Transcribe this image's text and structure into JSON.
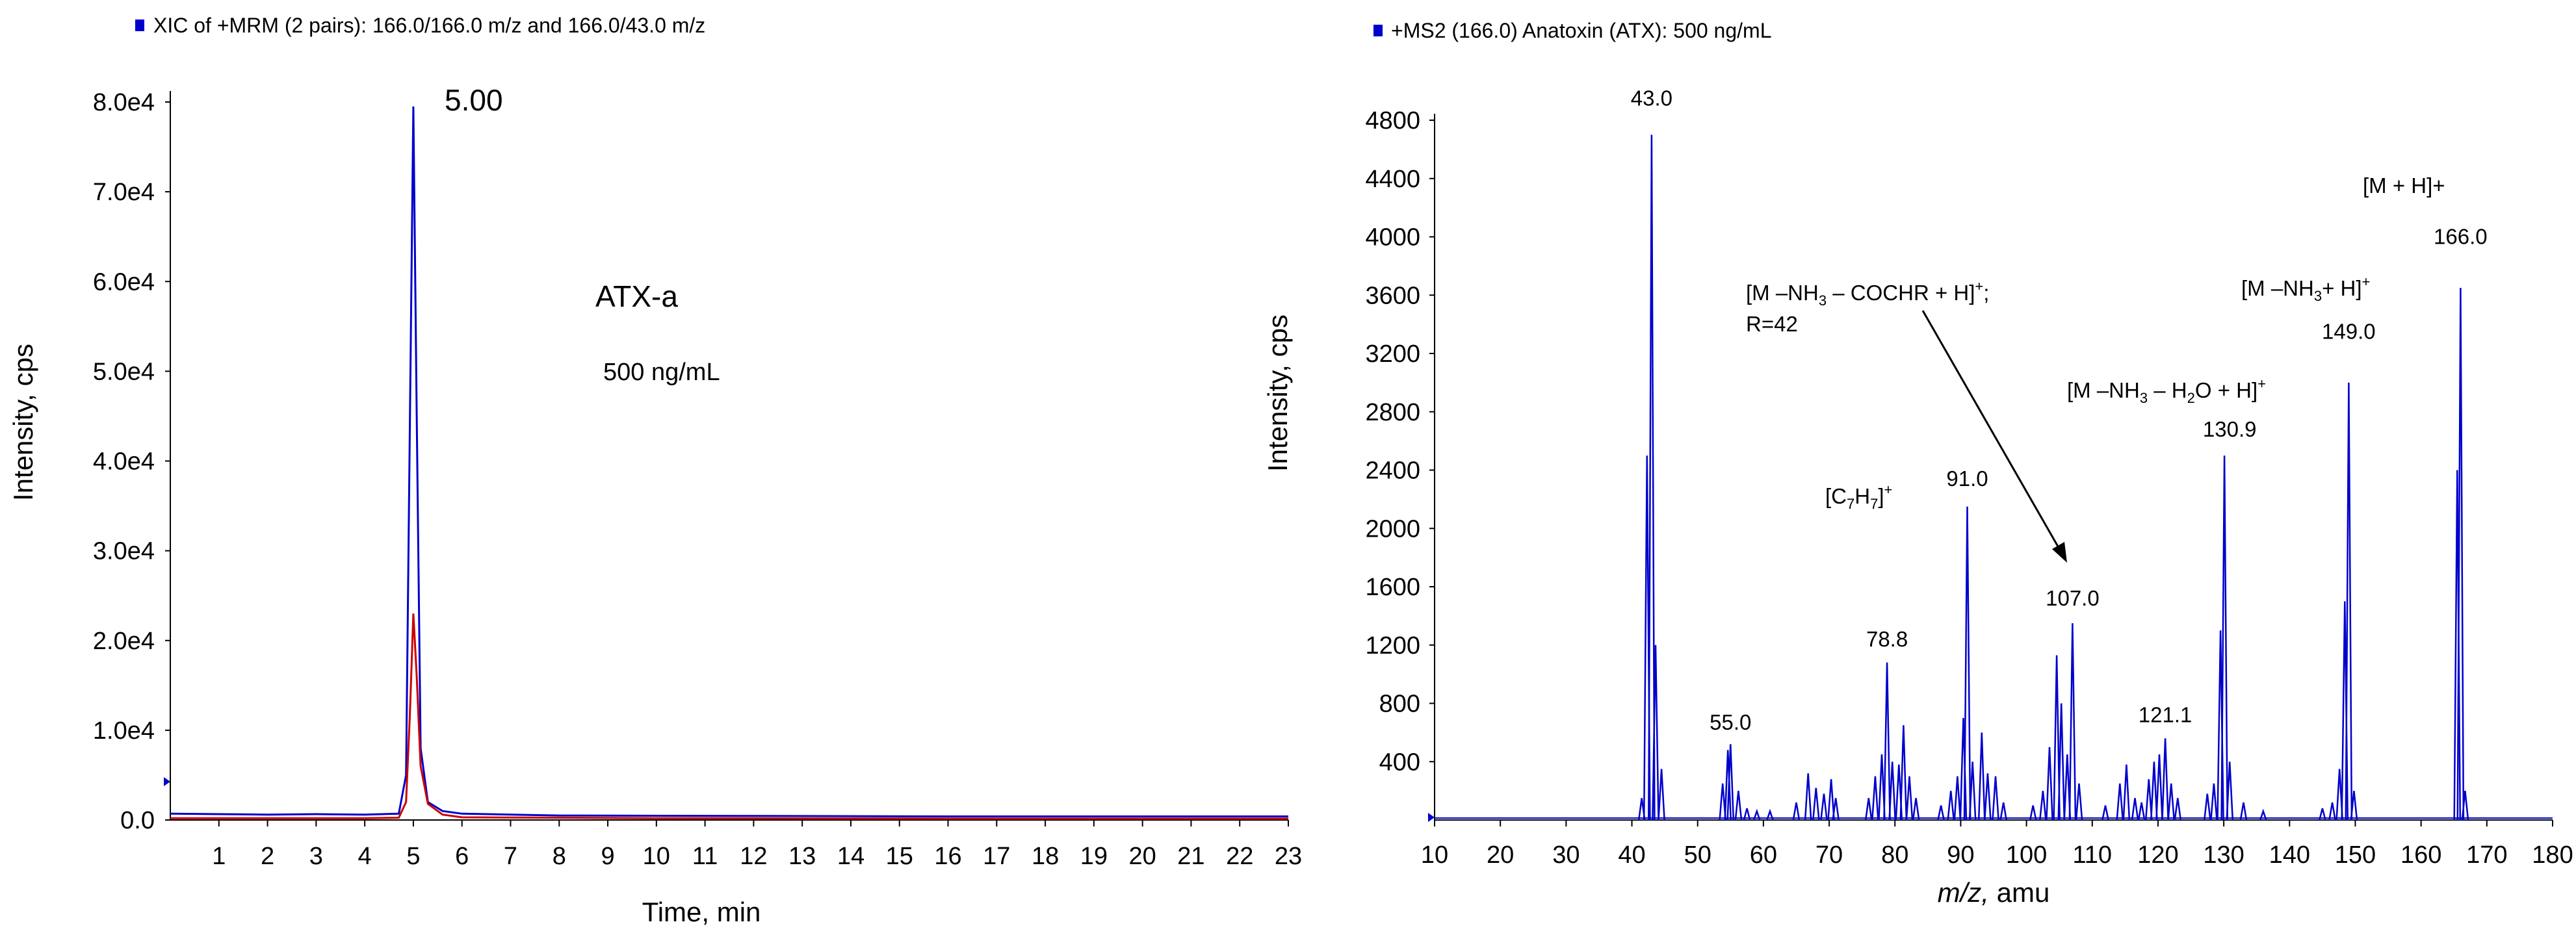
{
  "chart_data": [
    {
      "type": "line",
      "name": "chromatogram",
      "legend": "XIC of +MRM (2 pairs): 166.0/166.0 m/z and 166.0/43.0 m/z",
      "legend_color": "#0000cc",
      "xlabel": "Time, min",
      "ylabel": "Intensity, cps",
      "xlim": [
        0,
        23
      ],
      "ylim": [
        0,
        80000
      ],
      "x_ticks": [
        "1",
        "2",
        "3",
        "4",
        "5",
        "6",
        "7",
        "8",
        "9",
        "10",
        "11",
        "12",
        "13",
        "14",
        "15",
        "16",
        "17",
        "18",
        "19",
        "20",
        "21",
        "22",
        "23"
      ],
      "y_ticks": [
        {
          "label": "0.0",
          "value": 0
        },
        {
          "label": "1.0e4",
          "value": 10000
        },
        {
          "label": "2.0e4",
          "value": 20000
        },
        {
          "label": "3.0e4",
          "value": 30000
        },
        {
          "label": "4.0e4",
          "value": 40000
        },
        {
          "label": "5.0e4",
          "value": 50000
        },
        {
          "label": "6.0e4",
          "value": 60000
        },
        {
          "label": "7.0e4",
          "value": 70000
        },
        {
          "label": "8.0e4",
          "value": 80000
        }
      ],
      "series": [
        {
          "name": "166.0/166.0 m/z",
          "color": "#0000cc",
          "x": [
            0,
            1,
            2,
            3,
            4,
            4.7,
            4.85,
            4.93,
            5.0,
            5.07,
            5.15,
            5.3,
            5.6,
            6,
            8,
            12,
            16,
            20,
            23
          ],
          "y": [
            700,
            650,
            600,
            650,
            600,
            700,
            5000,
            45000,
            79500,
            45000,
            8000,
            2000,
            1000,
            700,
            500,
            450,
            400,
            400,
            400
          ]
        },
        {
          "name": "166.0/43.0 m/z",
          "color": "#cc0000",
          "x": [
            0,
            2,
            4,
            4.7,
            4.85,
            4.93,
            5.0,
            5.07,
            5.15,
            5.3,
            5.6,
            6,
            10,
            16,
            23
          ],
          "y": [
            200,
            200,
            200,
            250,
            2000,
            12000,
            23000,
            16000,
            6000,
            1800,
            600,
            300,
            200,
            150,
            150
          ]
        }
      ],
      "annotations": {
        "peak_rt": "5.00",
        "compound": "ATX-a",
        "concentration": "500 ng/mL"
      }
    },
    {
      "type": "bar",
      "name": "ms2-spectrum",
      "legend": "+MS2 (166.0) Anatoxin (ATX): 500 ng/mL",
      "legend_color": "#0000cc",
      "xlabel_italic": "m/z,",
      "xlabel_rest": " amu",
      "ylabel": "Intensity, cps",
      "xlim": [
        10,
        180
      ],
      "ylim": [
        0,
        4800
      ],
      "x_ticks": [
        "10",
        "20",
        "30",
        "40",
        "50",
        "60",
        "70",
        "80",
        "90",
        "100",
        "110",
        "120",
        "130",
        "140",
        "150",
        "160",
        "170",
        "180"
      ],
      "y_ticks": [
        "400",
        "800",
        "1200",
        "1600",
        "2000",
        "2400",
        "2800",
        "3200",
        "3600",
        "4000",
        "4400",
        "4800"
      ],
      "color": "#0000cc",
      "peaks": [
        {
          "mz": 41.5,
          "intensity": 150
        },
        {
          "mz": 42.3,
          "intensity": 2500
        },
        {
          "mz": 43.0,
          "intensity": 4700
        },
        {
          "mz": 43.6,
          "intensity": 1200
        },
        {
          "mz": 44.5,
          "intensity": 350
        },
        {
          "mz": 53.8,
          "intensity": 250
        },
        {
          "mz": 54.6,
          "intensity": 480
        },
        {
          "mz": 55.0,
          "intensity": 520
        },
        {
          "mz": 56.2,
          "intensity": 200
        },
        {
          "mz": 57.5,
          "intensity": 80
        },
        {
          "mz": 59.0,
          "intensity": 60
        },
        {
          "mz": 61.0,
          "intensity": 60
        },
        {
          "mz": 65.0,
          "intensity": 120
        },
        {
          "mz": 66.8,
          "intensity": 320
        },
        {
          "mz": 68.0,
          "intensity": 220
        },
        {
          "mz": 69.2,
          "intensity": 180
        },
        {
          "mz": 70.3,
          "intensity": 280
        },
        {
          "mz": 71.0,
          "intensity": 150
        },
        {
          "mz": 76.0,
          "intensity": 150
        },
        {
          "mz": 77.0,
          "intensity": 300
        },
        {
          "mz": 78.0,
          "intensity": 450
        },
        {
          "mz": 78.8,
          "intensity": 1080
        },
        {
          "mz": 79.6,
          "intensity": 400
        },
        {
          "mz": 80.6,
          "intensity": 380
        },
        {
          "mz": 81.3,
          "intensity": 650
        },
        {
          "mz": 82.2,
          "intensity": 300
        },
        {
          "mz": 83.2,
          "intensity": 150
        },
        {
          "mz": 87.0,
          "intensity": 100
        },
        {
          "mz": 88.5,
          "intensity": 200
        },
        {
          "mz": 89.5,
          "intensity": 300
        },
        {
          "mz": 90.4,
          "intensity": 700
        },
        {
          "mz": 91.0,
          "intensity": 2150
        },
        {
          "mz": 91.8,
          "intensity": 400
        },
        {
          "mz": 93.2,
          "intensity": 600
        },
        {
          "mz": 94.1,
          "intensity": 320
        },
        {
          "mz": 95.3,
          "intensity": 300
        },
        {
          "mz": 96.5,
          "intensity": 120
        },
        {
          "mz": 101.0,
          "intensity": 100
        },
        {
          "mz": 102.5,
          "intensity": 200
        },
        {
          "mz": 103.5,
          "intensity": 500
        },
        {
          "mz": 104.6,
          "intensity": 1130
        },
        {
          "mz": 105.3,
          "intensity": 800
        },
        {
          "mz": 106.2,
          "intensity": 450
        },
        {
          "mz": 107.0,
          "intensity": 1350
        },
        {
          "mz": 108.0,
          "intensity": 250
        },
        {
          "mz": 112.0,
          "intensity": 100
        },
        {
          "mz": 114.2,
          "intensity": 250
        },
        {
          "mz": 115.2,
          "intensity": 380
        },
        {
          "mz": 116.5,
          "intensity": 150
        },
        {
          "mz": 117.5,
          "intensity": 120
        },
        {
          "mz": 118.6,
          "intensity": 280
        },
        {
          "mz": 119.4,
          "intensity": 400
        },
        {
          "mz": 120.2,
          "intensity": 450
        },
        {
          "mz": 121.1,
          "intensity": 560
        },
        {
          "mz": 122.0,
          "intensity": 250
        },
        {
          "mz": 123.0,
          "intensity": 150
        },
        {
          "mz": 127.5,
          "intensity": 180
        },
        {
          "mz": 128.5,
          "intensity": 250
        },
        {
          "mz": 129.5,
          "intensity": 1300
        },
        {
          "mz": 130.1,
          "intensity": 2500
        },
        {
          "mz": 130.9,
          "intensity": 400
        },
        {
          "mz": 133.0,
          "intensity": 120
        },
        {
          "mz": 136.0,
          "intensity": 60
        },
        {
          "mz": 145.0,
          "intensity": 80
        },
        {
          "mz": 146.5,
          "intensity": 120
        },
        {
          "mz": 147.6,
          "intensity": 350
        },
        {
          "mz": 148.4,
          "intensity": 1500
        },
        {
          "mz": 149.0,
          "intensity": 3000
        },
        {
          "mz": 149.8,
          "intensity": 200
        },
        {
          "mz": 165.5,
          "intensity": 2400
        },
        {
          "mz": 166.0,
          "intensity": 3650
        },
        {
          "mz": 166.7,
          "intensity": 200
        }
      ],
      "labels": [
        {
          "text": "43.0",
          "mz": 43.0,
          "intensity": 4900
        },
        {
          "text": "55.0",
          "mz": 55.0,
          "intensity": 620
        },
        {
          "text": "78.8",
          "mz": 78.8,
          "intensity": 1190
        },
        {
          "text": "91.0",
          "mz": 91.0,
          "intensity": 2290
        },
        {
          "text": "107.0",
          "mz": 107.0,
          "intensity": 1470
        },
        {
          "text": "121.1",
          "mz": 121.1,
          "intensity": 670
        },
        {
          "text": "130.9",
          "mz": 130.9,
          "intensity": 2630
        },
        {
          "text": "149.0",
          "mz": 149.0,
          "intensity": 3300
        },
        {
          "text": "166.0",
          "mz": 166.0,
          "intensity": 3950
        }
      ],
      "annotations": {
        "c7h7": {
          "open": "[C",
          "s1": "7",
          "mid": "H",
          "s2": "7",
          "close": "]",
          "sup": "+"
        },
        "m166": {
          "text": "[M + H]+"
        },
        "m149": {
          "a": "[M –NH",
          "s1": "3",
          "b": "+ H]",
          "sup": "+"
        },
        "m130": {
          "a": "[M –NH",
          "s1": "3",
          "b": " – H",
          "s2": "2",
          "c": "O + H]",
          "sup": "+"
        },
        "m107": {
          "a": "[M –NH",
          "s1": "3",
          "b": " – COCHR + H]",
          "sup": "+",
          "c": ";",
          "line2": "R=42"
        }
      }
    }
  ]
}
